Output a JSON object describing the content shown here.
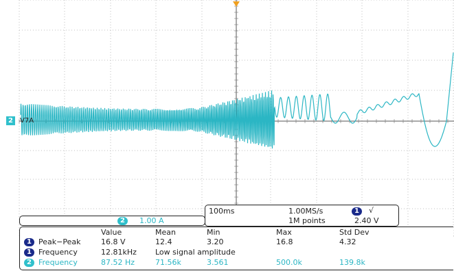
{
  "colors": {
    "trace": "#2bb6c4",
    "grid": "#bfbfbf",
    "ch1": "#1a2a8a",
    "ch2": "#30c0cc"
  },
  "trace_label": "V7A",
  "channel_marker": "2",
  "ch2_scale": {
    "badge": "2",
    "value": "1.00 A"
  },
  "timebase": {
    "time_div": "100ms",
    "sample_rate": "1.00MS/s",
    "record_length": "1M points",
    "trigger_badge": "1",
    "trigger_slope": "√",
    "trigger_level": "2.40 V"
  },
  "measurements": {
    "headers": [
      "Value",
      "Mean",
      "Min",
      "Max",
      "Std Dev"
    ],
    "rows": [
      {
        "badge": "1",
        "name": "Peak−Peak",
        "value": "16.8 V",
        "mean": "12.4",
        "min": "3.20",
        "max": "16.8",
        "std": "4.32"
      },
      {
        "badge": "1",
        "name": "Frequency",
        "value": "12.81kHz",
        "note": "Low signal amplitude"
      },
      {
        "badge": "2",
        "name": "Frequency",
        "value": "87.52 Hz",
        "mean": "71.56k",
        "min": "3.561",
        "max": "500.0k",
        "std": "139.8k"
      }
    ]
  }
}
